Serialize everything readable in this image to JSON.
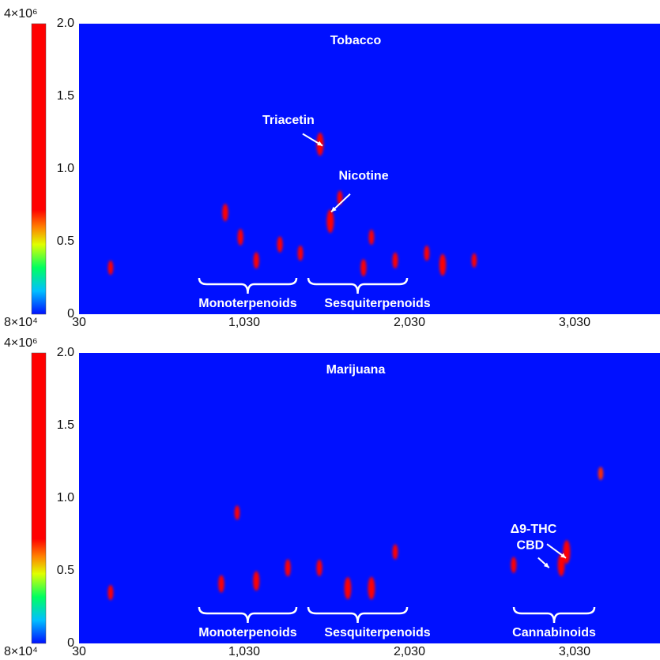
{
  "chart_data": [
    {
      "type": "heatmap",
      "title": "Tobacco",
      "x": [
        1489,
        1551,
        915,
        2231,
        221,
        1007,
        1246,
        1800,
        1752,
        1944,
        1370,
        1103,
        2135,
        2422,
        1609
      ],
      "y": [
        1.17,
        0.64,
        0.7,
        0.34,
        0.32,
        0.53,
        0.48,
        0.53,
        0.32,
        0.37,
        0.42,
        0.37,
        0.42,
        0.37,
        0.8
      ],
      "values": [
        3500000,
        3800000,
        900000,
        2500000,
        400000,
        700000,
        600000,
        500000,
        800000,
        600000,
        500000,
        700000,
        500000,
        400000,
        400000
      ],
      "xlim": [
        30,
        3547
      ],
      "ylim": [
        0,
        2
      ],
      "xticks": [
        30,
        {
          "value": 1030,
          "label": "1,030"
        },
        {
          "value": 2030,
          "label": "2,030"
        },
        {
          "value": 3030,
          "label": "3,030"
        }
      ],
      "yticks": [
        0,
        0.5,
        {
          "value": 1,
          "label": "1.0"
        },
        1.5,
        {
          "value": 2,
          "label": "2.0"
        }
      ],
      "colorbar": {
        "min": {
          "value": 80000,
          "label": "8×10⁴"
        },
        "max": {
          "value": 4000000,
          "label": "4×10⁶"
        }
      },
      "annotations": [
        {
          "text": "Triacetin",
          "x": 1489,
          "y": 1.17
        },
        {
          "text": "Nicotine",
          "x": 1571,
          "y": 0.72
        }
      ],
      "regions": [
        {
          "label": "Monoterpenoids",
          "x": [
            757,
            1346
          ]
        },
        {
          "label": "Sesquiterpenoids",
          "x": [
            1418,
            2016
          ]
        }
      ]
    },
    {
      "type": "heatmap",
      "title": "Marijuana",
      "x": [
        2982,
        2949,
        1800,
        1657,
        1103,
        891,
        1294,
        1485,
        1944,
        221,
        2661,
        987,
        3188
      ],
      "y": [
        0.63,
        0.54,
        0.38,
        0.38,
        0.43,
        0.41,
        0.52,
        0.52,
        0.63,
        0.35,
        0.54,
        0.9,
        1.17
      ],
      "values": [
        4000000,
        3000000,
        3200000,
        2800000,
        1500000,
        900000,
        800000,
        700000,
        500000,
        500000,
        600000,
        400000,
        300000
      ],
      "xlim": [
        30,
        3547
      ],
      "ylim": [
        0,
        2
      ],
      "xticks": [
        30,
        {
          "value": 1030,
          "label": "1,030"
        },
        {
          "value": 2030,
          "label": "2,030"
        },
        {
          "value": 3030,
          "label": "3,030"
        }
      ],
      "yticks": [
        0,
        0.5,
        {
          "value": 1,
          "label": "1.0"
        },
        1.5,
        {
          "value": 2,
          "label": "2.0"
        }
      ],
      "colorbar": {
        "min": {
          "value": 80000,
          "label": "8×10⁴"
        },
        "max": {
          "value": 4000000,
          "label": "4×10⁶"
        }
      },
      "annotations": [
        {
          "text": "Δ9-THC",
          "x": 2963,
          "y": 0.6
        },
        {
          "text": "CBD",
          "x": 2867,
          "y": 0.53
        }
      ],
      "regions": [
        {
          "label": "Monoterpenoids",
          "x": [
            757,
            1346
          ]
        },
        {
          "label": "Sesquiterpenoids",
          "x": [
            1418,
            2016
          ]
        },
        {
          "label": "Cannabinoids",
          "x": [
            2662,
            3150
          ]
        }
      ]
    }
  ]
}
